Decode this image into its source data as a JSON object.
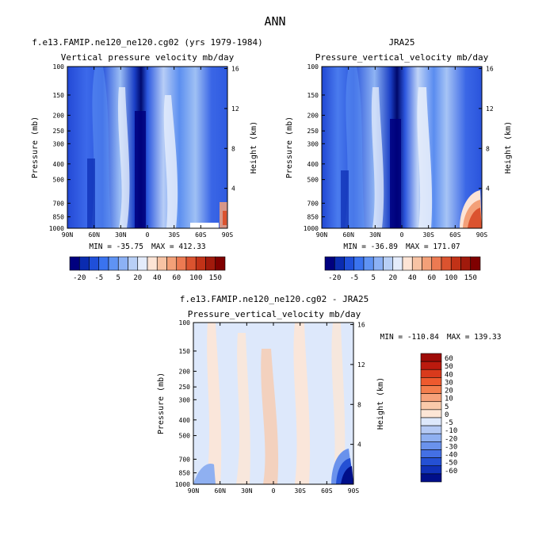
{
  "figure_title": "ANN",
  "chart_data": [
    {
      "type": "heatmap",
      "name": "model",
      "title": "f.e13.FAMIP.ne120_ne120.cg02 (yrs 1979-1984)",
      "subtitle": "Vertical pressure velocity mb/day",
      "xlabel": "",
      "ylabel": "Pressure (mb)",
      "y2label": "Height (km)",
      "x_ticks": [
        "90N",
        "60N",
        "30N",
        "0",
        "30S",
        "60S",
        "90S"
      ],
      "y_ticks": [
        100,
        150,
        200,
        250,
        300,
        400,
        500,
        700,
        850,
        1000
      ],
      "y2_ticks": [
        4,
        8,
        12,
        16
      ],
      "min_label": "MIN = -35.75",
      "max_label": "MAX = 412.33",
      "colorbar_labels": [
        "-20",
        "-5",
        "5",
        "20",
        "40",
        "60",
        "100",
        "150"
      ],
      "colorbar_colors": [
        "#00007f",
        "#0a2bb0",
        "#1f4fd9",
        "#3a73ef",
        "#5f93f4",
        "#8cb1f5",
        "#b8cff6",
        "#e4ecfb",
        "#fde4d5",
        "#f7c3a4",
        "#f3a078",
        "#ec7a52",
        "#db532f",
        "#c23217",
        "#a11a0c",
        "#7f0000"
      ]
    },
    {
      "type": "heatmap",
      "name": "obs",
      "title": "JRA25",
      "subtitle": "Pressure_vertical_velocity mb/day",
      "xlabel": "",
      "ylabel": "Pressure (mb)",
      "y2label": "Height (km)",
      "x_ticks": [
        "90N",
        "60N",
        "30N",
        "0",
        "30S",
        "60S",
        "90S"
      ],
      "y_ticks": [
        100,
        150,
        200,
        250,
        300,
        400,
        500,
        700,
        850,
        1000
      ],
      "y2_ticks": [
        4,
        8,
        12,
        16
      ],
      "min_label": "MIN = -36.89",
      "max_label": "MAX = 171.07",
      "colorbar_labels": [
        "-20",
        "-5",
        "5",
        "20",
        "40",
        "60",
        "100",
        "150"
      ],
      "colorbar_colors": [
        "#00007f",
        "#0a2bb0",
        "#1f4fd9",
        "#3a73ef",
        "#5f93f4",
        "#8cb1f5",
        "#b8cff6",
        "#e4ecfb",
        "#fde4d5",
        "#f7c3a4",
        "#f3a078",
        "#ec7a52",
        "#db532f",
        "#c23217",
        "#a11a0c",
        "#7f0000"
      ]
    },
    {
      "type": "heatmap",
      "name": "diff",
      "title": "f.e13.FAMIP.ne120_ne120.cg02 - JRA25",
      "subtitle": "Pressure_vertical_velocity mb/day",
      "xlabel": "",
      "ylabel": "Pressure (mb)",
      "y2label": "Height (km)",
      "x_ticks": [
        "90N",
        "60N",
        "30N",
        "0",
        "30S",
        "60S",
        "90S"
      ],
      "y_ticks": [
        100,
        150,
        200,
        250,
        300,
        400,
        500,
        700,
        850,
        1000
      ],
      "y2_ticks": [
        4,
        8,
        12,
        16
      ],
      "min_label": "MIN = -110.84",
      "max_label": "MAX = 139.33",
      "colorbar_labels": [
        "60",
        "50",
        "40",
        "30",
        "20",
        "10",
        "5",
        "0",
        "-5",
        "-10",
        "-20",
        "-30",
        "-40",
        "-50",
        "-60"
      ],
      "colorbar_colors": [
        "#9e0b07",
        "#bb1a0e",
        "#d93a1c",
        "#ee5a2e",
        "#f47e4d",
        "#f7a27a",
        "#facaaa",
        "#fde6d6",
        "#dde8fb",
        "#b4c9f4",
        "#8fb0f1",
        "#6a92ec",
        "#4470e4",
        "#2450d4",
        "#1031b8",
        "#000f8a"
      ]
    }
  ]
}
